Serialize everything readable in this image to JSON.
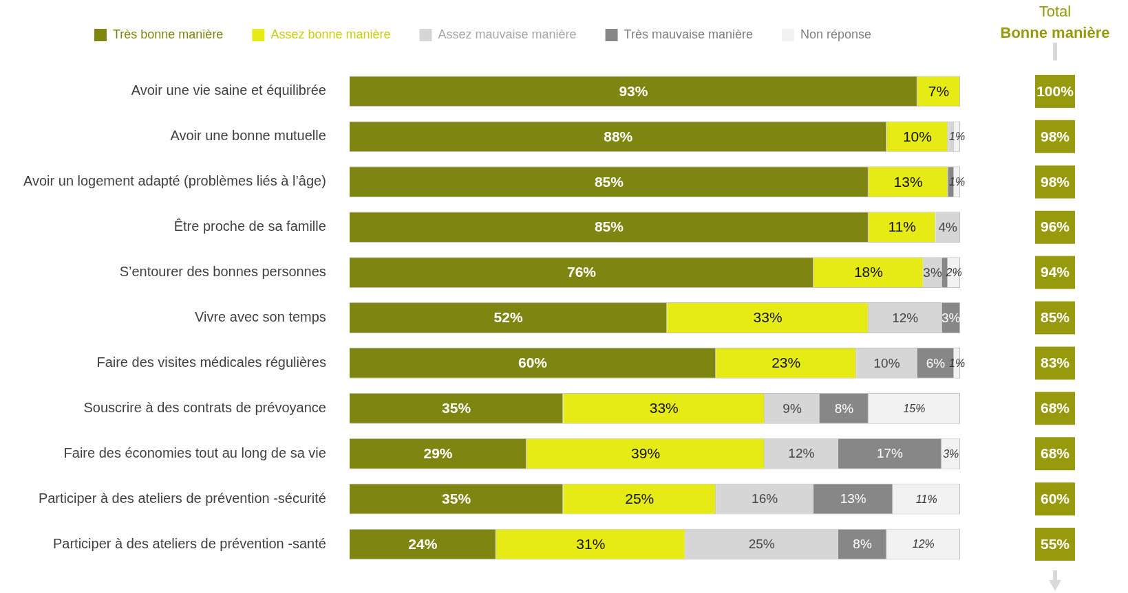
{
  "chart_data": {
    "type": "bar",
    "orientation": "horizontal",
    "stacked": true,
    "legend": "top",
    "grid": false,
    "tick_labels": "y",
    "categories": [
      "Avoir une vie saine et équilibrée",
      "Avoir une bonne mutuelle",
      "Avoir un logement adapté (problèmes liés à l’âge)",
      "Être proche de sa famille",
      "S’entourer des bonnes personnes",
      "Vivre avec son temps",
      "Faire des visites médicales régulières",
      "Souscrire à des contrats de prévoyance",
      "Faire des économies tout au long de sa vie",
      "Participer à des ateliers de prévention -sécurité",
      "Participer à des ateliers de prévention -santé"
    ],
    "xlim": [
      0,
      100
    ],
    "series": [
      {
        "name": "Très bonne manière",
        "color": "#7f8511",
        "values": [
          93,
          88,
          85,
          85,
          76,
          52,
          60,
          35,
          29,
          35,
          24
        ],
        "value_labels": [
          "93%",
          "88%",
          "85%",
          "85%",
          "76%",
          "52%",
          "60%",
          "35%",
          "29%",
          "35%",
          "24%"
        ]
      },
      {
        "name": "Assez bonne manière",
        "color": "#e6ea15",
        "values": [
          7,
          10,
          13,
          11,
          18,
          33,
          23,
          33,
          39,
          25,
          31
        ],
        "value_labels": [
          "7%",
          "10%",
          "13%",
          "11%",
          "18%",
          "33%",
          "23%",
          "33%",
          "39%",
          "25%",
          "31%"
        ]
      },
      {
        "name": "Assez mauvaise manière",
        "color": "#d6d6d6",
        "values": [
          null,
          1,
          null,
          4,
          3,
          12,
          10,
          9,
          12,
          16,
          25
        ],
        "value_labels": [
          null,
          null,
          null,
          "4%",
          "3%",
          "12%",
          "10%",
          "9%",
          "12%",
          "16%",
          "25%"
        ]
      },
      {
        "name": "Très mauvaise manière",
        "color": "#878787",
        "values": [
          null,
          null,
          1,
          null,
          1,
          3,
          6,
          8,
          17,
          13,
          8
        ],
        "value_labels": [
          null,
          null,
          null,
          null,
          null,
          "3%",
          "6%",
          "8%",
          "17%",
          "13%",
          "8%"
        ]
      },
      {
        "name": "Non réponse",
        "color": "#f2f2f2",
        "values": [
          null,
          1,
          1,
          null,
          2,
          null,
          1,
          15,
          3,
          11,
          12
        ],
        "value_labels": [
          null,
          "1%",
          "1%",
          null,
          "2%",
          null,
          "1%",
          "15%",
          "3%",
          "11%",
          "12%"
        ]
      }
    ],
    "annotations": [
      "Total",
      "Bonne manière",
      "100%",
      "98%",
      "98%",
      "96%",
      "94%",
      "85%",
      "83%",
      "68%",
      "68%",
      "60%",
      "55%"
    ]
  }
}
